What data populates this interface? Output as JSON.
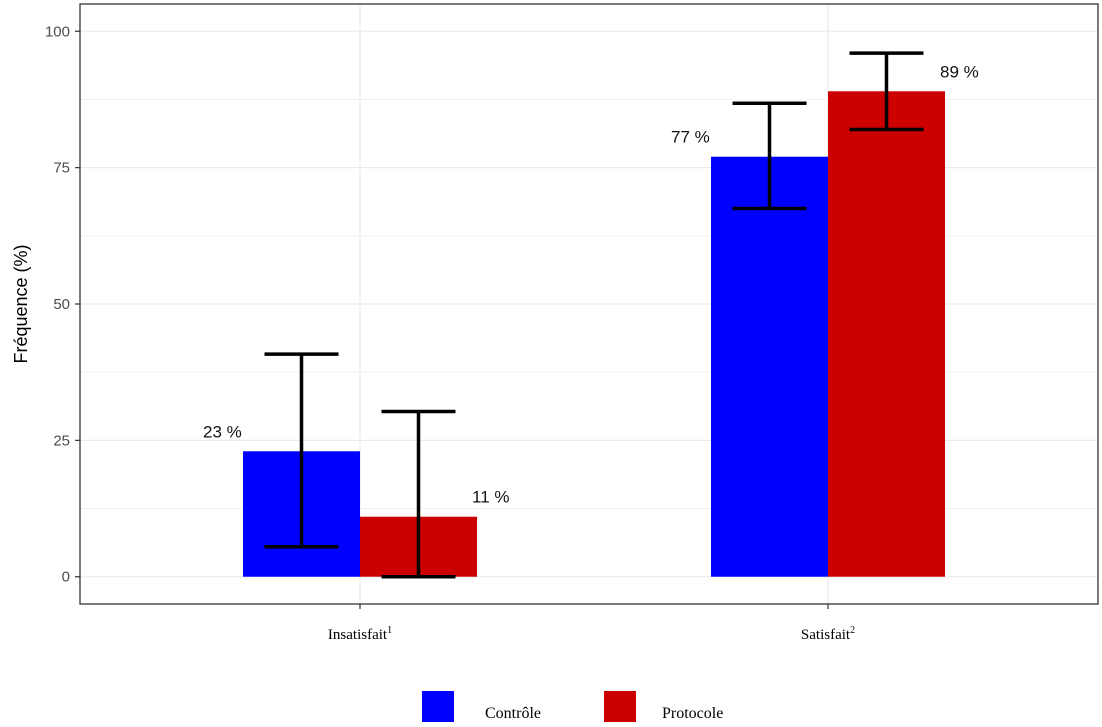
{
  "chart_data": {
    "type": "bar",
    "categories": [
      {
        "name": "Insatisfait",
        "sup": "1"
      },
      {
        "name": "Satisfait",
        "sup": "2"
      }
    ],
    "series": [
      {
        "name": "Contrôle",
        "color": "#0000FF",
        "values": [
          23,
          77
        ],
        "ci_low": [
          5.5,
          67.5
        ],
        "ci_high": [
          40.8,
          86.8
        ]
      },
      {
        "name": "Protocole",
        "color": "#CC0000",
        "values": [
          11,
          89
        ],
        "ci_low": [
          0,
          82
        ],
        "ci_high": [
          30.3,
          96
        ]
      }
    ],
    "data_labels": [
      [
        "23 %",
        "77 %"
      ],
      [
        "11 %",
        "89 %"
      ]
    ],
    "xlabel": "",
    "ylabel": "Fréquence (%)",
    "ylim": [
      -5,
      105
    ],
    "yticks": [
      0,
      25,
      50,
      75,
      100
    ],
    "grid": true,
    "legend_position": "bottom",
    "error_bars": true
  }
}
